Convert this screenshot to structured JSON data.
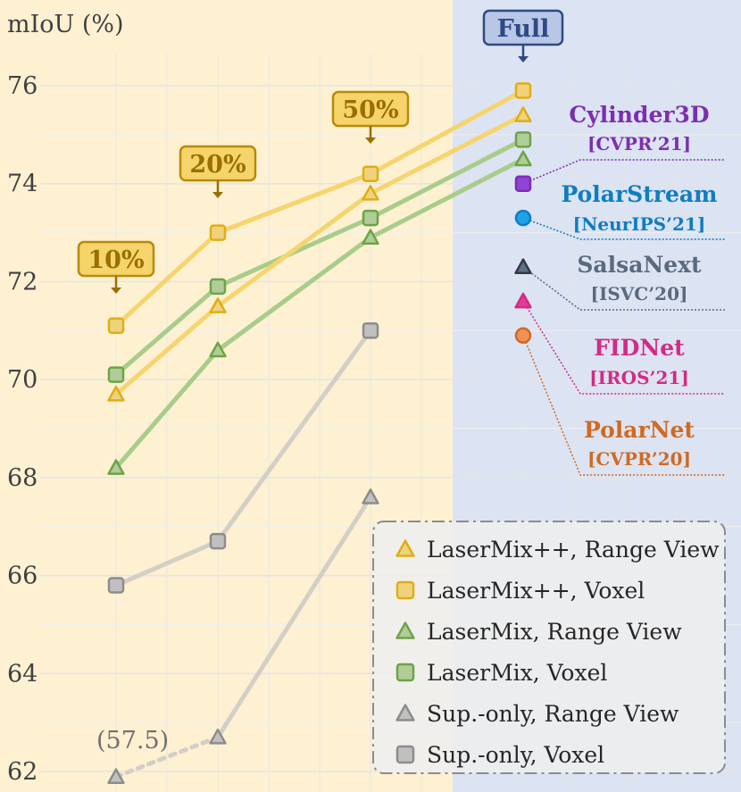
{
  "chart_data": {
    "type": "line",
    "ylabel": "mIoU (%)",
    "ylim": [
      62,
      76.8
    ],
    "yticks": [
      62,
      64,
      66,
      68,
      70,
      72,
      74,
      76
    ],
    "x": [
      "10%",
      "20%",
      "50%",
      "Full"
    ],
    "split_tags": [
      "10%",
      "20%",
      "50%",
      "Full"
    ],
    "series": [
      {
        "name": "LaserMix++, Range View",
        "marker": "triangle",
        "color": "#E0AE12",
        "line": "#F6D46E",
        "values": [
          69.7,
          71.5,
          73.8,
          75.4
        ]
      },
      {
        "name": "LaserMix++, Voxel",
        "marker": "square",
        "color": "#E0AE12",
        "line": "#F6D46E",
        "values": [
          71.1,
          73.0,
          74.2,
          75.9
        ]
      },
      {
        "name": "LaserMix, Range View",
        "marker": "triangle",
        "color": "#6EA346",
        "line": "#A9CC8A",
        "values": [
          68.2,
          70.6,
          72.9,
          74.5
        ]
      },
      {
        "name": "LaserMix, Voxel",
        "marker": "square",
        "color": "#6EA346",
        "line": "#A9CC8A",
        "values": [
          70.1,
          71.9,
          73.3,
          74.9
        ]
      },
      {
        "name": "Sup.-only, Range View",
        "marker": "triangle",
        "color": "#8C8C8C",
        "line": "#D3CFC6",
        "values": [
          57.5,
          62.7,
          67.6,
          null
        ]
      },
      {
        "name": "Sup.-only, Voxel",
        "marker": "square",
        "color": "#8C8C8C",
        "line": "#D3CFC6",
        "values": [
          65.8,
          66.7,
          71.0,
          null
        ]
      }
    ],
    "offscale_annotation": "(57.5)",
    "baselines": [
      {
        "name": "Cylinder3D",
        "venue": "[CVPR’21]",
        "value": 74.0,
        "marker": "square",
        "color": "#7B2FB0",
        "fill": "#8E44D6"
      },
      {
        "name": "PolarStream",
        "venue": "[NeurIPS’21]",
        "value": 73.3,
        "marker": "circle",
        "color": "#0E7DC2",
        "fill": "#1EA3E8"
      },
      {
        "name": "SalsaNext",
        "venue": "[ISVC’20]",
        "value": 72.3,
        "marker": "triangle",
        "color": "#5A6A7E",
        "fill": "#5F6F84"
      },
      {
        "name": "FIDNet",
        "venue": "[IROS’21]",
        "value": 71.6,
        "marker": "triangle",
        "color": "#D42A86",
        "fill": "#E43B95"
      },
      {
        "name": "PolarNet",
        "venue": "[CVPR’20]",
        "value": 70.9,
        "marker": "circle",
        "color": "#D06A22",
        "fill": "#F0915A"
      }
    ],
    "legend_position": "bottom-right",
    "grid": true
  }
}
